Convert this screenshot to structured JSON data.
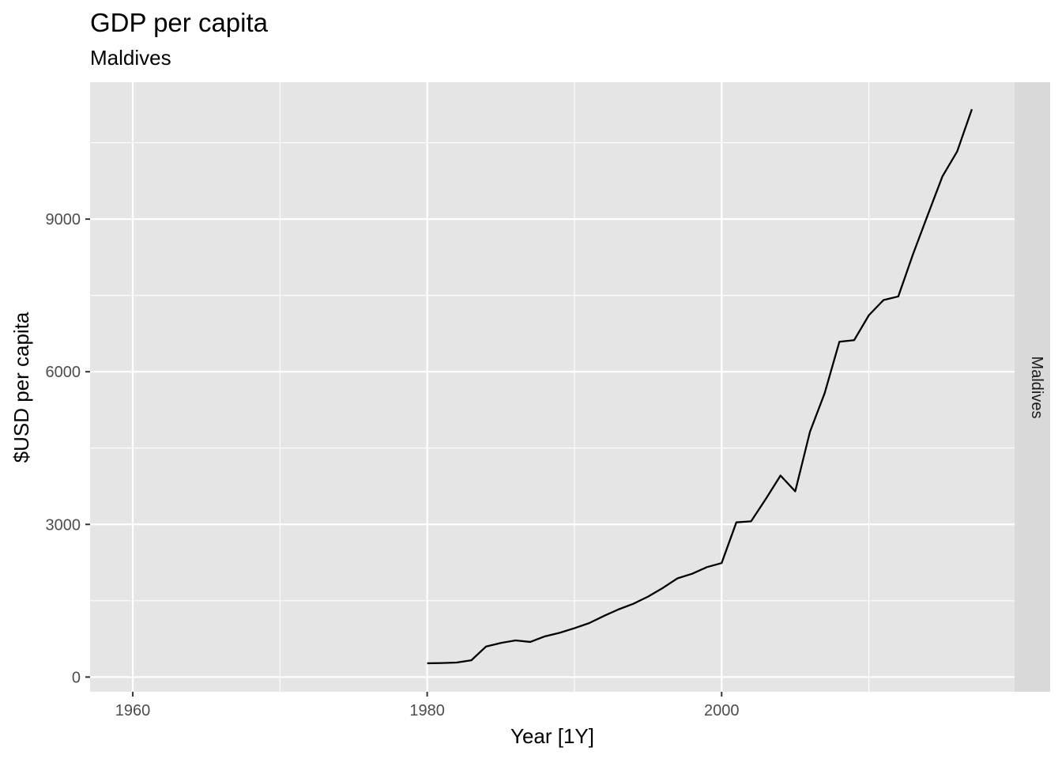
{
  "chart_data": {
    "type": "line",
    "title": "GDP per capita",
    "subtitle": "Maldives",
    "xlabel": "Year [1Y]",
    "ylabel": "$USD per capita",
    "facet_label": "Maldives",
    "xlim": [
      1957.1,
      2019.9
    ],
    "ylim": [
      -290,
      11690
    ],
    "x_ticks": [
      1960,
      1980,
      2000
    ],
    "x_minor_ticks": [
      1970,
      1990,
      2010
    ],
    "y_ticks": [
      0,
      3000,
      6000,
      9000
    ],
    "y_minor_ticks": [
      1500,
      4500,
      7500,
      10500
    ],
    "grid": true,
    "colors": {
      "panel_background": "#e5e5e5",
      "grid": "#ffffff",
      "line": "#000000",
      "strip_background": "#d9d9d9"
    },
    "series": [
      {
        "x": [
          1980,
          1981,
          1982,
          1983,
          1984,
          1985,
          1986,
          1987,
          1988,
          1989,
          1990,
          1991,
          1992,
          1993,
          1994,
          1995,
          1996,
          1997,
          1998,
          1999,
          2000,
          2001,
          2002,
          2003,
          2004,
          2005,
          2006,
          2007,
          2008,
          2009,
          2010,
          2011,
          2012,
          2013,
          2014,
          2015,
          2016,
          2017
        ],
        "values": [
          270,
          275,
          285,
          330,
          600,
          670,
          720,
          690,
          800,
          870,
          960,
          1060,
          1200,
          1330,
          1440,
          1580,
          1750,
          1940,
          2030,
          2160,
          2240,
          3040,
          3060,
          3500,
          3960,
          3650,
          4820,
          5580,
          6590,
          6620,
          7110,
          7410,
          7480,
          8310,
          9080,
          9840,
          10330,
          11160
        ]
      }
    ]
  }
}
